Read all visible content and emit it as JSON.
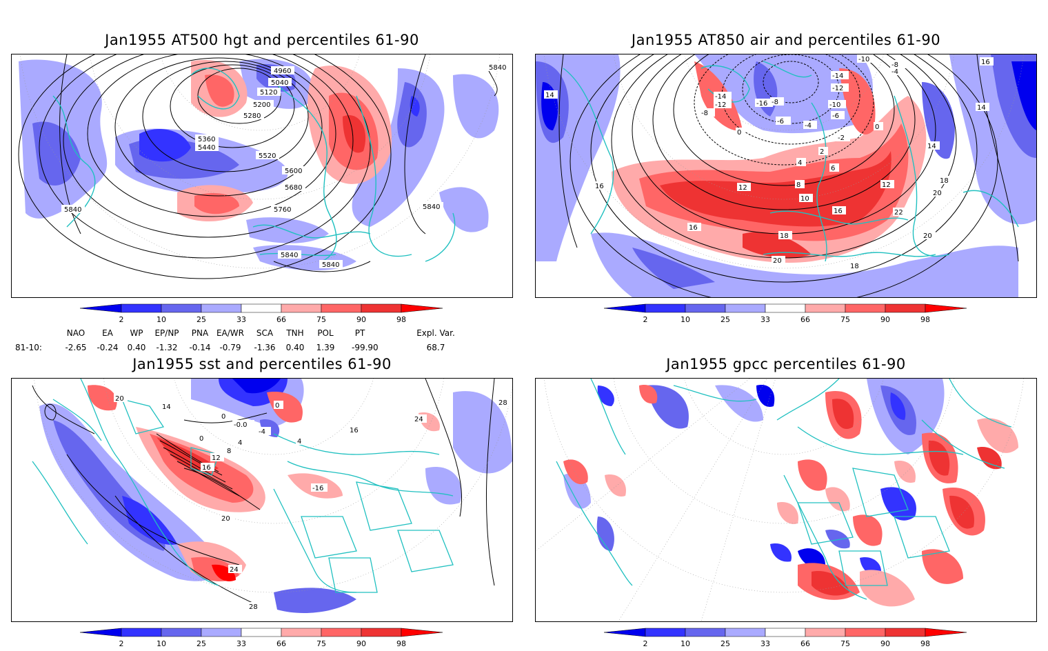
{
  "panels": [
    {
      "title": "Jan1955 AT500 hgt and percentiles 61-90",
      "contour_labels": [
        "4960",
        "5040",
        "5120",
        "5200",
        "5280",
        "5360",
        "5440",
        "5520",
        "5600",
        "5680",
        "5760",
        "5840",
        "5840",
        "5840",
        "5840",
        "5840"
      ]
    },
    {
      "title": "Jan1955 AT850 air and percentiles 61-90",
      "contour_labels": [
        "-10",
        "-8",
        "-4",
        "-14",
        "-12",
        "-14",
        "-12",
        "-8",
        "-16",
        "-8",
        "-10",
        "-6",
        "-4",
        "-2",
        "0",
        "0",
        "-6",
        "2",
        "4",
        "6",
        "8",
        "12",
        "10",
        "12",
        "14",
        "16",
        "16",
        "14",
        "16",
        "18",
        "18",
        "20",
        "20",
        "22",
        "18",
        "20",
        "14",
        "16"
      ]
    },
    {
      "title": "Jan1955 sst and percentiles 61-90",
      "contour_labels": [
        "20",
        "14",
        "28",
        "0",
        "0",
        "-0.0",
        "-4",
        "4",
        "0",
        "4",
        "8",
        "12",
        "16",
        "-16",
        "16",
        "24",
        "20",
        "24",
        "28"
      ]
    },
    {
      "title": "Jan1955 gpcc percentiles 61-90",
      "contour_labels": []
    }
  ],
  "colorbar": {
    "tick_labels": [
      "2",
      "10",
      "25",
      "33",
      "66",
      "75",
      "90",
      "98"
    ],
    "colors": [
      "#0000ee",
      "#3333ff",
      "#6666ee",
      "#aaaaff",
      "#ffffff",
      "#ffaaaa",
      "#ff6666",
      "#ee3333",
      "#ff0000"
    ]
  },
  "indices": {
    "header": [
      "NAO",
      "EA",
      "WP",
      "EP/NP",
      "PNA",
      "EA/WR",
      "SCA",
      "TNH",
      "POL",
      "PT",
      "Expl. Var."
    ],
    "row_label": "81-10:",
    "values": [
      "-2.65",
      "-0.24",
      "0.40",
      "-1.32",
      "-0.14",
      "-0.79",
      "-1.36",
      "0.40",
      "1.39",
      "-99.90",
      "68.7"
    ]
  }
}
